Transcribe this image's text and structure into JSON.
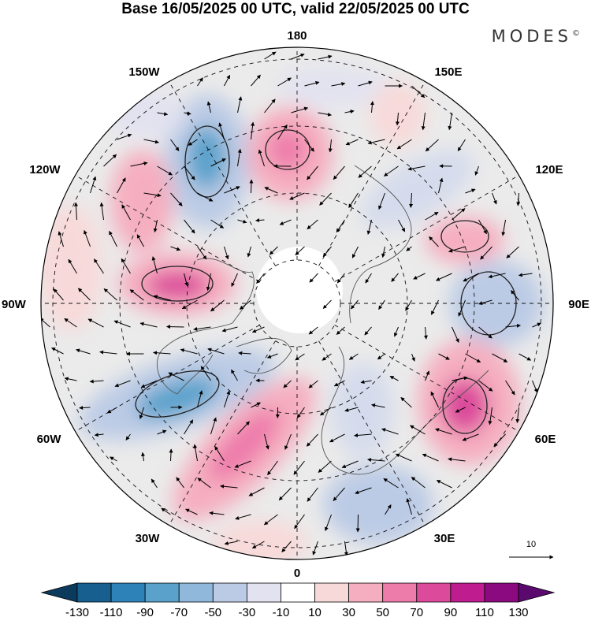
{
  "header": {
    "title": "Base 16/05/2025 00 UTC, valid 22/05/2025 00 UTC",
    "brand": "MODES",
    "brand_mark": "©"
  },
  "map": {
    "projection": "north-polar-stereographic",
    "longitude_labels": {
      "top": "180",
      "bottom": "0",
      "left": "90W",
      "right": "90E",
      "upper_left_inner": "150W",
      "upper_left_outer": "120W",
      "upper_right_inner": "150E",
      "upper_right_outer": "120E",
      "lower_left_outer": "60W",
      "lower_left_inner": "30W",
      "lower_right_outer": "60E",
      "lower_right_inner": "30E"
    },
    "wind_scale_label": "10"
  },
  "colorbar": {
    "labels": [
      "-130",
      "-110",
      "-90",
      "-70",
      "-50",
      "-30",
      "-10",
      "10",
      "30",
      "50",
      "70",
      "90",
      "110",
      "130"
    ],
    "colors": [
      "#0c3a5c",
      "#165f8f",
      "#2d82b8",
      "#5aa2cc",
      "#8fb8da",
      "#bccbe5",
      "#e2e2f0",
      "#ffffff",
      "#f8d9d9",
      "#f5aebf",
      "#ee7cab",
      "#dc4a9b",
      "#bf1c8f",
      "#8c0a80",
      "#5a0a6e"
    ]
  },
  "colors": {
    "neutral_fill": "#ebebeb",
    "pole_fill": "#ffffff"
  }
}
